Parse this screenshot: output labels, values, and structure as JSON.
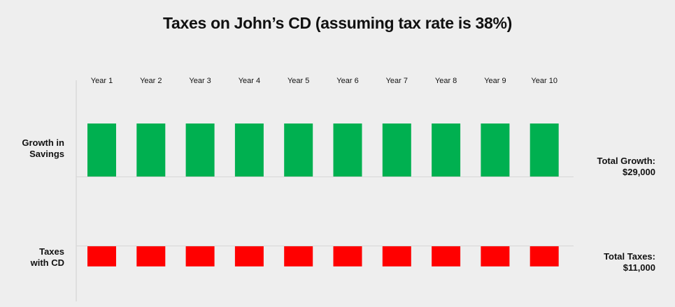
{
  "chart_data": {
    "type": "bar",
    "title": "Taxes on John’s CD (assuming tax rate is 38%)",
    "categories": [
      "Year 1",
      "Year 2",
      "Year 3",
      "Year 4",
      "Year 5",
      "Year 6",
      "Year 7",
      "Year 8",
      "Year 9",
      "Year 10"
    ],
    "series": [
      {
        "name": "Growth in Savings",
        "label_lines": [
          "Growth in",
          "Savings"
        ],
        "color": "#00b050",
        "values": [
          2900,
          2900,
          2900,
          2900,
          2900,
          2900,
          2900,
          2900,
          2900,
          2900
        ],
        "total_label": "Total Growth:",
        "total_value": "$29,000"
      },
      {
        "name": "Taxes with CD",
        "label_lines": [
          "Taxes",
          "with CD"
        ],
        "color": "#ff0000",
        "values": [
          1100,
          1100,
          1100,
          1100,
          1100,
          1100,
          1100,
          1100,
          1100,
          1100
        ],
        "total_label": "Total Taxes:",
        "total_value": "$11,000"
      }
    ],
    "xlabel": "",
    "ylabel": "",
    "grid": false,
    "legend": "none"
  }
}
